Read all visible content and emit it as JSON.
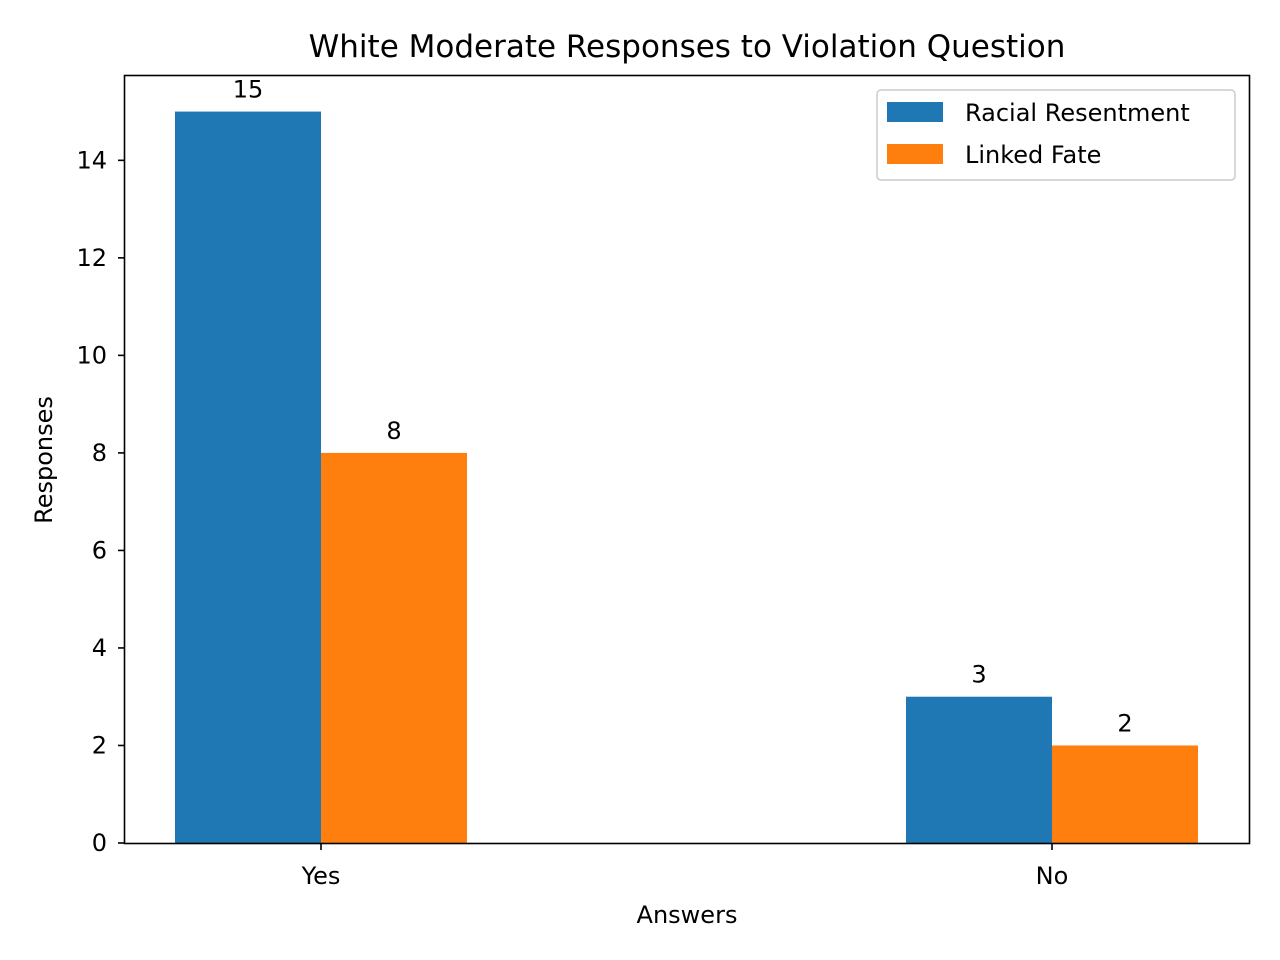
{
  "chart_data": {
    "type": "bar",
    "title": "White Moderate Responses to Violation Question",
    "xlabel": "Answers",
    "ylabel": "Responses",
    "categories": [
      "Yes",
      "No"
    ],
    "series": [
      {
        "name": "Racial Resentment",
        "values": [
          15,
          3
        ],
        "color": "#1f77b4"
      },
      {
        "name": "Linked Fate",
        "values": [
          8,
          2
        ],
        "color": "#ff7f0e"
      }
    ],
    "ylim": [
      0,
      15.75
    ],
    "yticks": [
      0,
      2,
      4,
      6,
      8,
      10,
      12,
      14
    ],
    "legend_position": "top-right",
    "grid": false,
    "show_data_labels": true
  }
}
